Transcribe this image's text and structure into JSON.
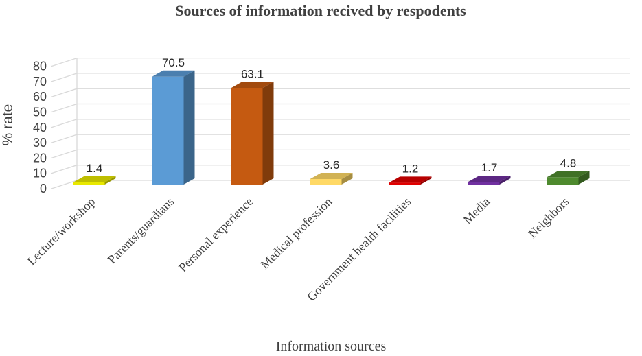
{
  "chart_data": {
    "type": "bar",
    "title": "Sources of information recived by respodents",
    "xlabel": "Information sources",
    "ylabel": "% rate",
    "ylim": [
      0,
      80
    ],
    "yticks": [
      0,
      10,
      20,
      30,
      40,
      50,
      60,
      70,
      80
    ],
    "grid": true,
    "style": "3d-column",
    "categories": [
      "Lecture/workshop",
      "Parents/guardians",
      "Personal experience",
      "Medical profession",
      "Government health facilities",
      "Media",
      "Neighbors"
    ],
    "values": [
      1.4,
      70.5,
      63.1,
      3.6,
      1.2,
      1.7,
      4.8
    ],
    "data_labels": [
      "1.4",
      "70.5",
      "63.1",
      "3.6",
      "1.2",
      "1.7",
      "4.8"
    ],
    "colors": [
      "#e8e800",
      "#5b9bd5",
      "#c55a11",
      "#ffd966",
      "#e00000",
      "#7030a0",
      "#4e8a2e"
    ]
  }
}
